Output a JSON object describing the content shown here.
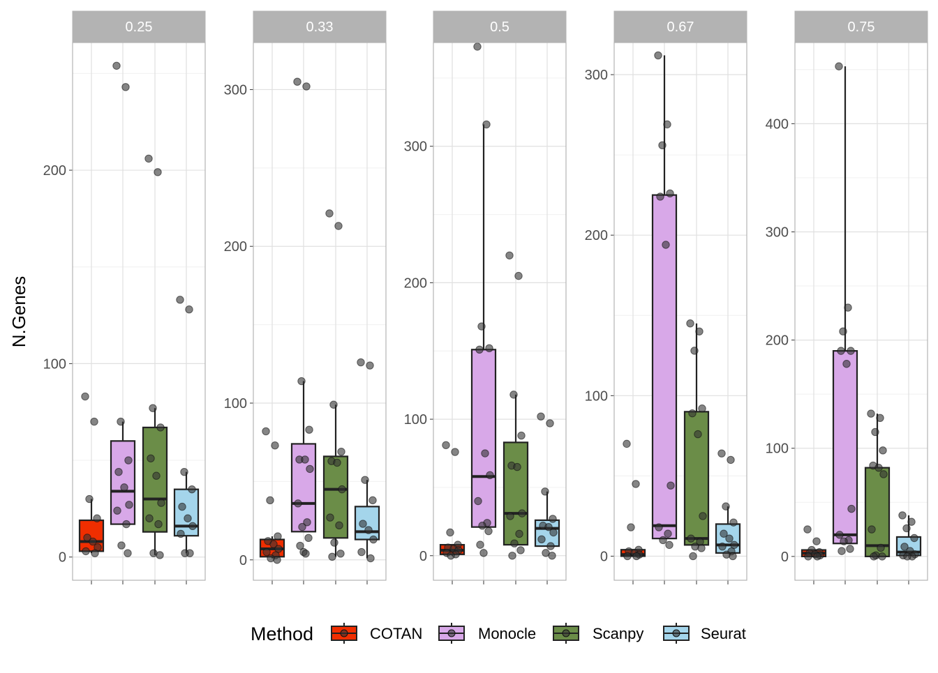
{
  "chart_data": {
    "type": "box",
    "ylabel": "N.Genes",
    "legend": {
      "title": "Method",
      "position": "bottom",
      "entries": [
        "COTAN",
        "Monocle",
        "Scanpy",
        "Seurat"
      ]
    },
    "colors": {
      "COTAN": "#f02e00",
      "Monocle": "#d8a8e8",
      "Scanpy": "#6b8d48",
      "Seurat": "#a4d5eb",
      "strip_bg": "#b3b3b3",
      "grid": "#e0e0e0",
      "point": "#333333"
    },
    "grid": true,
    "facets": [
      {
        "label": "0.25",
        "ylim": [
          -12,
          266
        ],
        "yticks": [
          0,
          100,
          200
        ],
        "boxes": [
          {
            "method": "COTAN",
            "min": 2,
            "q1": 3,
            "median": 8,
            "q3": 19,
            "max": 30
          },
          {
            "method": "Monocle",
            "min": 17,
            "q1": 17,
            "median": 34,
            "q3": 60,
            "max": 70
          },
          {
            "method": "Scanpy",
            "min": 1,
            "q1": 13,
            "median": 30,
            "q3": 67,
            "max": 77
          },
          {
            "method": "Seurat",
            "min": 2,
            "q1": 11,
            "median": 16,
            "q3": 35,
            "max": 44
          }
        ],
        "points": {
          "COTAN": [
            83,
            70,
            30,
            20,
            10,
            8,
            5,
            3,
            2
          ],
          "Monocle": [
            254,
            243,
            70,
            50,
            44,
            36,
            27,
            24,
            17,
            6,
            2
          ],
          "Scanpy": [
            206,
            199,
            77,
            67,
            51,
            42,
            28,
            20,
            17,
            2,
            1
          ],
          "Seurat": [
            133,
            128,
            44,
            35,
            26,
            20,
            16,
            12,
            2,
            2
          ]
        }
      },
      {
        "label": "0.33",
        "ylim": [
          -13,
          330
        ],
        "yticks": [
          0,
          100,
          200,
          300
        ],
        "boxes": [
          {
            "method": "COTAN",
            "min": 1,
            "q1": 2,
            "median": 7,
            "q3": 13,
            "max": 15
          },
          {
            "method": "Monocle",
            "min": 18,
            "q1": 18,
            "median": 36,
            "q3": 74,
            "max": 114
          },
          {
            "method": "Scanpy",
            "min": 2,
            "q1": 14,
            "median": 45,
            "q3": 66,
            "max": 99
          },
          {
            "method": "Seurat",
            "min": 1,
            "q1": 13,
            "median": 18,
            "q3": 34,
            "max": 51
          }
        ],
        "points": {
          "COTAN": [
            82,
            73,
            38,
            15,
            12,
            10,
            7,
            5,
            3,
            1,
            0
          ],
          "Monocle": [
            305,
            302,
            114,
            83,
            64,
            64,
            58,
            36,
            24,
            21,
            14,
            9,
            5,
            4
          ],
          "Scanpy": [
            221,
            213,
            99,
            69,
            63,
            62,
            45,
            27,
            22,
            11,
            4,
            2
          ],
          "Seurat": [
            126,
            124,
            51,
            38,
            23,
            19,
            13,
            5,
            1
          ]
        }
      },
      {
        "label": "0.5",
        "ylim": [
          -18,
          376
        ],
        "yticks": [
          0,
          100,
          200,
          300
        ],
        "boxes": [
          {
            "method": "COTAN",
            "min": 0,
            "q1": 1,
            "median": 4,
            "q3": 8,
            "max": 8
          },
          {
            "method": "Monocle",
            "min": 21,
            "q1": 21,
            "median": 58,
            "q3": 151,
            "max": 316
          },
          {
            "method": "Scanpy",
            "min": 8,
            "q1": 8,
            "median": 31,
            "q3": 83,
            "max": 118
          },
          {
            "method": "Seurat",
            "min": 7,
            "q1": 7,
            "median": 20,
            "q3": 26,
            "max": 47
          }
        ],
        "points": {
          "COTAN": [
            81,
            76,
            17,
            8,
            6,
            5,
            4,
            2,
            1,
            0
          ],
          "Monocle": [
            373,
            316,
            168,
            152,
            151,
            75,
            59,
            40,
            24,
            22,
            18,
            8,
            2
          ],
          "Scanpy": [
            220,
            205,
            118,
            88,
            66,
            65,
            31,
            29,
            16,
            9,
            4,
            0
          ],
          "Seurat": [
            102,
            97,
            47,
            27,
            22,
            21,
            17,
            12,
            7,
            2,
            0
          ]
        }
      },
      {
        "label": "0.67",
        "ylim": [
          -15,
          320
        ],
        "yticks": [
          0,
          100,
          200,
          300
        ],
        "boxes": [
          {
            "method": "COTAN",
            "min": 0,
            "q1": 0,
            "median": 1,
            "q3": 4,
            "max": 4
          },
          {
            "method": "Monocle",
            "min": 11,
            "q1": 11,
            "median": 19,
            "q3": 225,
            "max": 312
          },
          {
            "method": "Scanpy",
            "min": 7,
            "q1": 7,
            "median": 11,
            "q3": 90,
            "max": 145
          },
          {
            "method": "Seurat",
            "min": 2,
            "q1": 2,
            "median": 7,
            "q3": 20,
            "max": 31
          }
        ],
        "points": {
          "COTAN": [
            70,
            45,
            18,
            4,
            3,
            2,
            1,
            0,
            0
          ],
          "Monocle": [
            312,
            269,
            256,
            226,
            224,
            194,
            44,
            18,
            14,
            10,
            7
          ],
          "Scanpy": [
            145,
            140,
            128,
            92,
            89,
            76,
            25,
            11,
            9,
            6,
            5,
            0
          ],
          "Seurat": [
            64,
            60,
            31,
            21,
            14,
            11,
            7,
            6,
            3,
            1,
            0
          ]
        }
      },
      {
        "label": "0.75",
        "ylim": [
          -22,
          475
        ],
        "yticks": [
          0,
          100,
          200,
          300,
          400
        ],
        "boxes": [
          {
            "method": "COTAN",
            "min": 0,
            "q1": 0,
            "median": 3,
            "q3": 6,
            "max": 6
          },
          {
            "method": "Monocle",
            "min": 12,
            "q1": 12,
            "median": 20,
            "q3": 190,
            "max": 453
          },
          {
            "method": "Scanpy",
            "min": 0,
            "q1": 0,
            "median": 10,
            "q3": 82,
            "max": 132
          },
          {
            "method": "Seurat",
            "min": 1,
            "q1": 1,
            "median": 4,
            "q3": 18,
            "max": 38
          }
        ],
        "points": {
          "COTAN": [
            25,
            14,
            6,
            4,
            3,
            2,
            1,
            0,
            0
          ],
          "Monocle": [
            453,
            230,
            208,
            190,
            190,
            178,
            44,
            20,
            15,
            14,
            7,
            5
          ],
          "Scanpy": [
            132,
            128,
            115,
            98,
            84,
            82,
            76,
            25,
            8,
            1,
            0,
            0
          ],
          "Seurat": [
            38,
            32,
            26,
            17,
            9,
            5,
            2,
            1,
            0,
            0
          ]
        }
      }
    ]
  }
}
